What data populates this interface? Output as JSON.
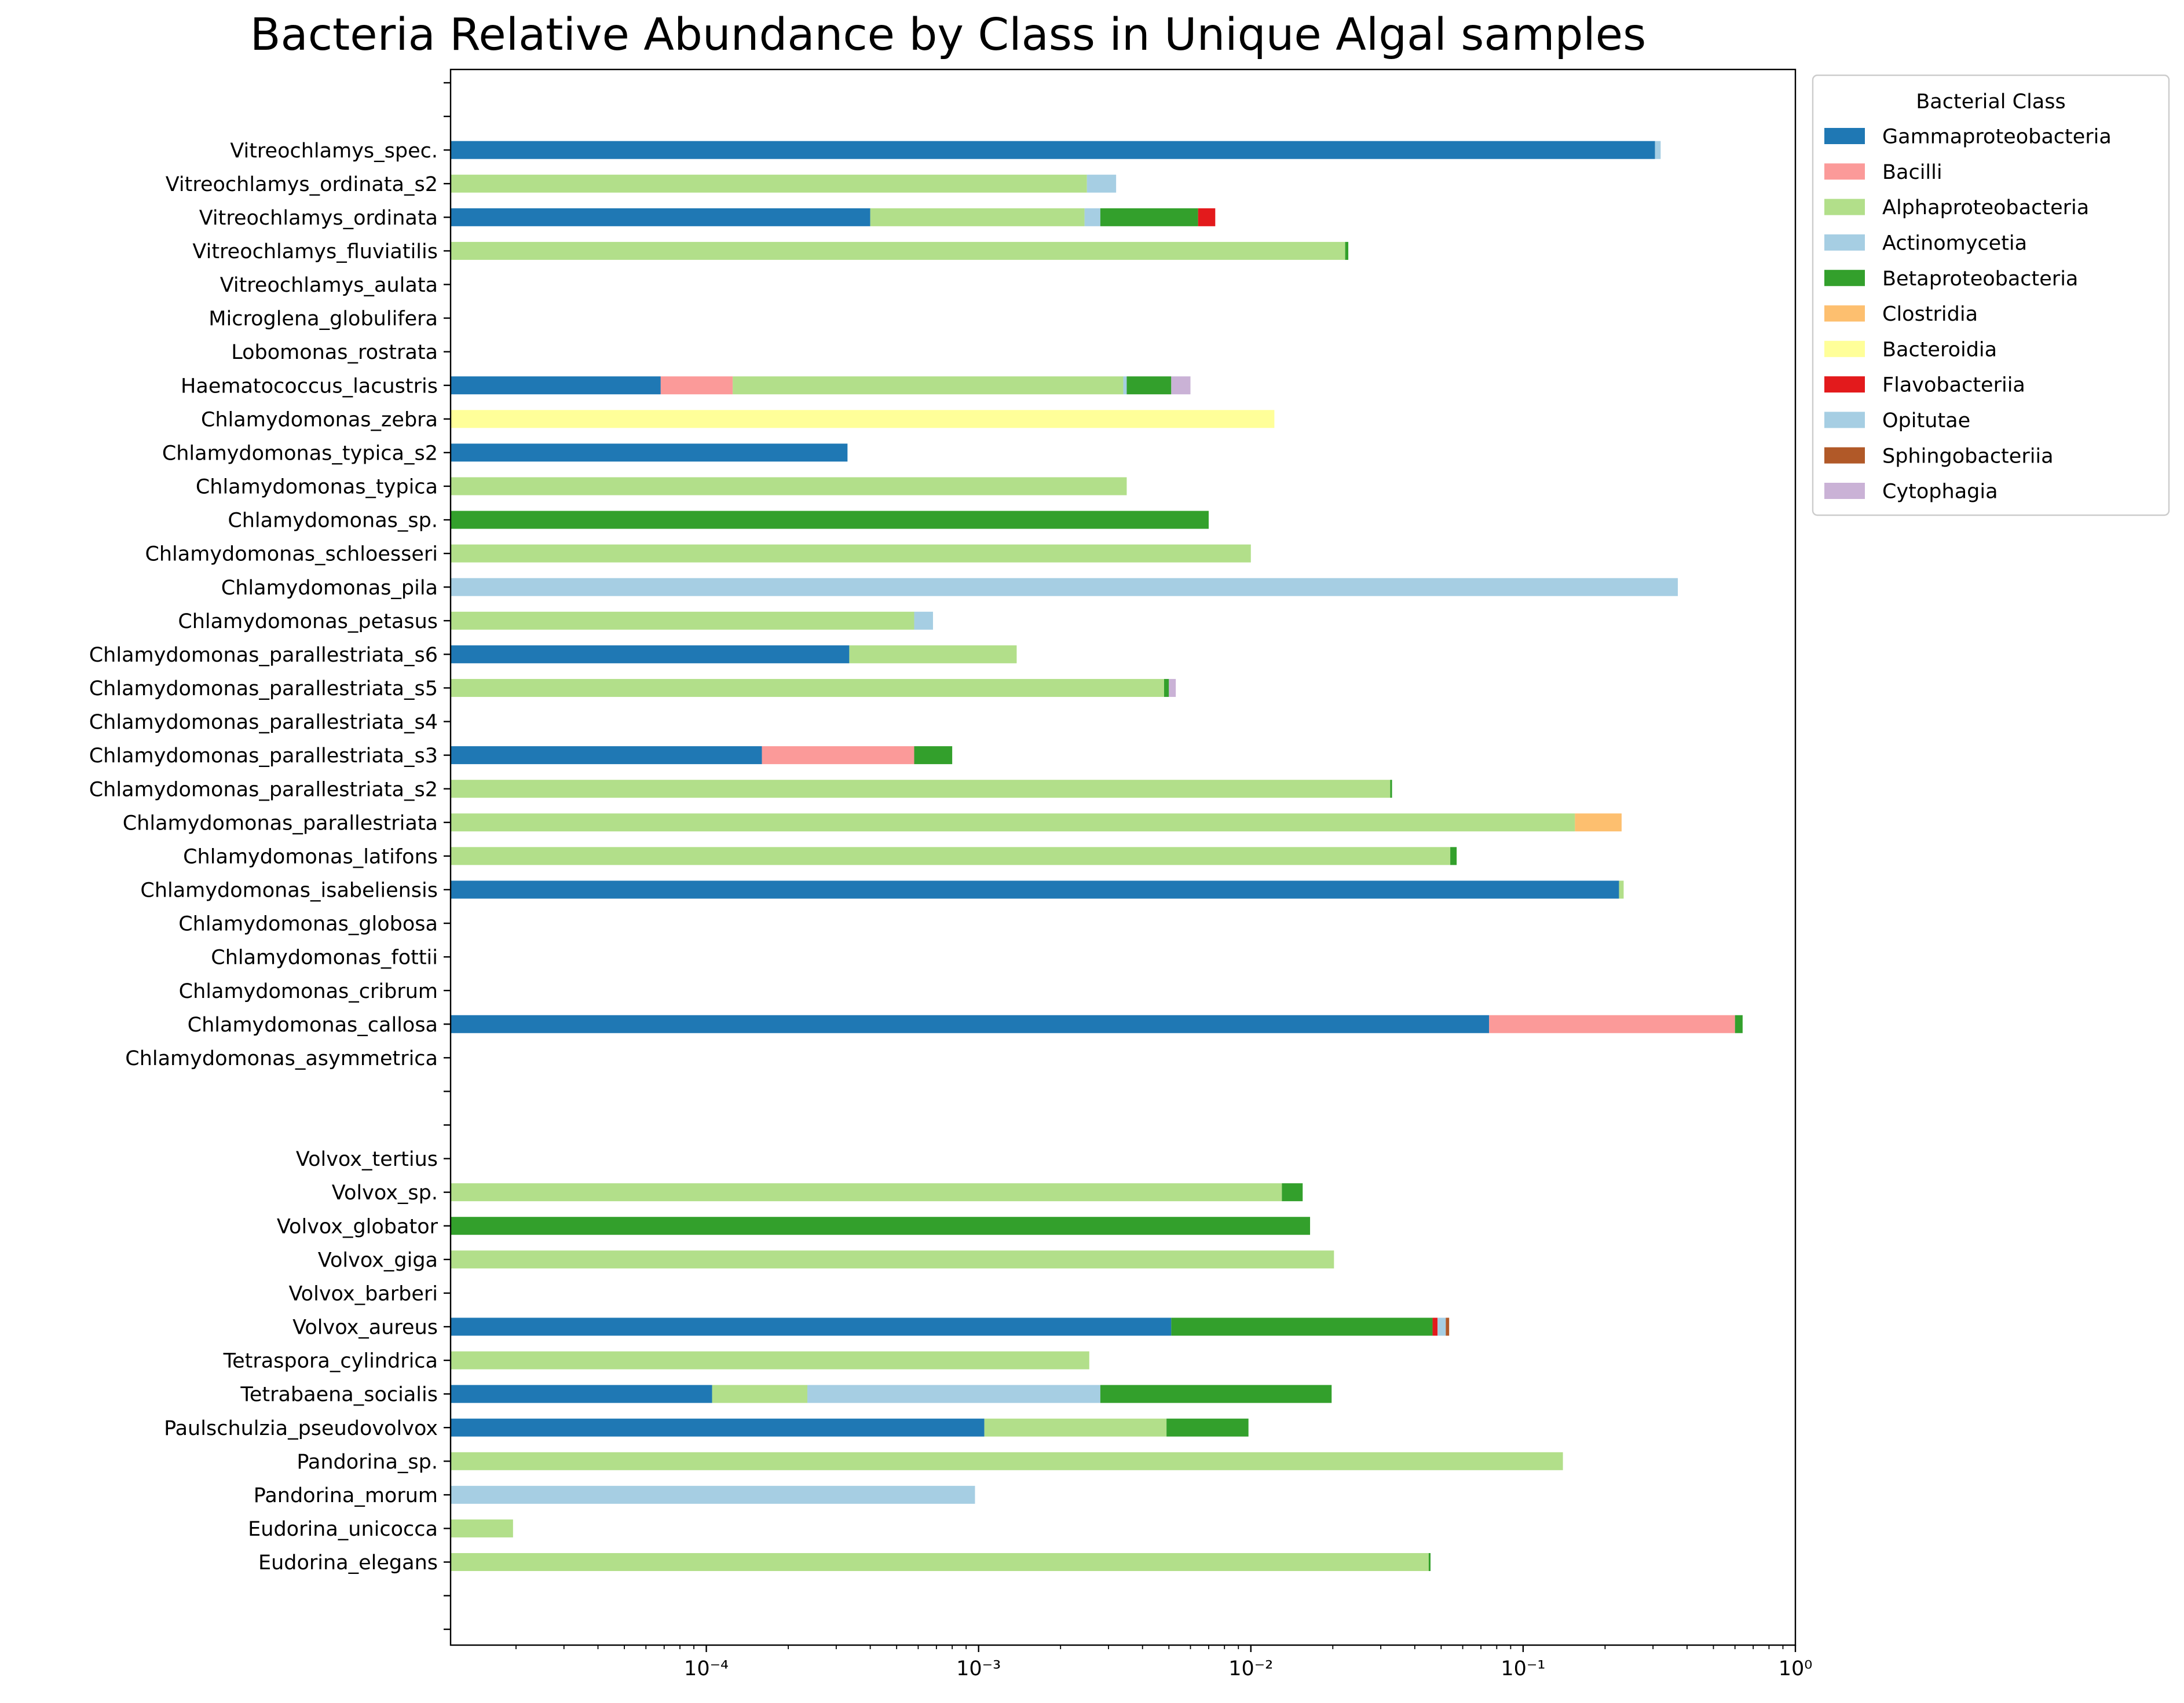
{
  "chart_data": {
    "type": "bar",
    "orientation": "horizontal",
    "stacked": true,
    "title": "Bacteria Relative Abundance by Class in  Unique Algal samples",
    "xlabel": "",
    "ylabel": "",
    "xscale": "log",
    "xlim": [
      1.15e-05,
      1
    ],
    "x_ticks": [
      {
        "value": 0.0001,
        "label": "10⁻⁴"
      },
      {
        "value": 0.001,
        "label": "10⁻³"
      },
      {
        "value": 0.01,
        "label": "10⁻²"
      },
      {
        "value": 0.1,
        "label": "10⁻¹"
      },
      {
        "value": 1,
        "label": "10⁰"
      }
    ],
    "grid": false,
    "legend": {
      "title": "Bacterial Class",
      "placement": "outside-top-right",
      "entries": [
        {
          "name": "Gammaproteobacteria",
          "color": "#1f78b4"
        },
        {
          "name": "Bacilli",
          "color": "#fb9a99"
        },
        {
          "name": "Alphaproteobacteria",
          "color": "#b2df8a"
        },
        {
          "name": "Actinomycetia",
          "color": "#a6cee3"
        },
        {
          "name": "Betaproteobacteria",
          "color": "#33a02c"
        },
        {
          "name": "Clostridia",
          "color": "#fdbf6f"
        },
        {
          "name": "Bacteroidia",
          "color": "#ffff99"
        },
        {
          "name": "Flavobacteriia",
          "color": "#e31a1c"
        },
        {
          "name": "Opitutae",
          "color": "#a6cee3"
        },
        {
          "name": "Sphingobacteriia",
          "color": "#b15928"
        },
        {
          "name": "Cytophagia",
          "color": "#cab2d6"
        }
      ]
    },
    "rows": [
      {
        "label": "",
        "segments": []
      },
      {
        "label": "",
        "segments": []
      },
      {
        "label": "Vitreochlamys_spec.",
        "segments": [
          {
            "class": "Gammaproteobacteria",
            "start": 0,
            "end": 0.305
          },
          {
            "class": "Actinomycetia",
            "start": 0.305,
            "end": 0.32
          }
        ]
      },
      {
        "label": "Vitreochlamys_ordinata_s2",
        "segments": [
          {
            "class": "Alphaproteobacteria",
            "start": 0,
            "end": 0.0025
          },
          {
            "class": "Actinomycetia",
            "start": 0.0025,
            "end": 0.0032
          }
        ]
      },
      {
        "label": "Vitreochlamys_ordinata",
        "segments": [
          {
            "class": "Gammaproteobacteria",
            "start": 0,
            "end": 0.0004
          },
          {
            "class": "Alphaproteobacteria",
            "start": 0.0004,
            "end": 0.00245
          },
          {
            "class": "Actinomycetia",
            "start": 0.00245,
            "end": 0.0028
          },
          {
            "class": "Betaproteobacteria",
            "start": 0.0028,
            "end": 0.0064
          },
          {
            "class": "Flavobacteriia",
            "start": 0.0064,
            "end": 0.0074
          }
        ]
      },
      {
        "label": "Vitreochlamys_fluviatilis",
        "segments": [
          {
            "class": "Alphaproteobacteria",
            "start": 0,
            "end": 0.0222
          },
          {
            "class": "Betaproteobacteria",
            "start": 0.0222,
            "end": 0.0228
          }
        ]
      },
      {
        "label": "Vitreochlamys_aulata",
        "segments": []
      },
      {
        "label": "Microglena_globulifera",
        "segments": []
      },
      {
        "label": "Lobomonas_rostrata",
        "segments": []
      },
      {
        "label": "Haematococcus_lacustris",
        "segments": [
          {
            "class": "Gammaproteobacteria",
            "start": 0,
            "end": 6.8e-05
          },
          {
            "class": "Bacilli",
            "start": 6.8e-05,
            "end": 0.000125
          },
          {
            "class": "Alphaproteobacteria",
            "start": 0.000125,
            "end": 0.0034
          },
          {
            "class": "Actinomycetia",
            "start": 0.0034,
            "end": 0.0035
          },
          {
            "class": "Betaproteobacteria",
            "start": 0.0035,
            "end": 0.0051
          },
          {
            "class": "Cytophagia",
            "start": 0.0051,
            "end": 0.006
          }
        ]
      },
      {
        "label": "Chlamydomonas_zebra",
        "segments": [
          {
            "class": "Bacteroidia",
            "start": 0,
            "end": 0.0122
          }
        ]
      },
      {
        "label": "Chlamydomonas_typica_s2",
        "segments": [
          {
            "class": "Gammaproteobacteria",
            "start": 0,
            "end": 0.00033
          }
        ]
      },
      {
        "label": "Chlamydomonas_typica",
        "segments": [
          {
            "class": "Alphaproteobacteria",
            "start": 0,
            "end": 0.0035
          }
        ]
      },
      {
        "label": "Chlamydomonas_sp.",
        "segments": [
          {
            "class": "Betaproteobacteria",
            "start": 0,
            "end": 0.007
          }
        ]
      },
      {
        "label": "Chlamydomonas_schloesseri",
        "segments": [
          {
            "class": "Alphaproteobacteria",
            "start": 0,
            "end": 0.01
          }
        ]
      },
      {
        "label": "Chlamydomonas_pila",
        "segments": [
          {
            "class": "Actinomycetia",
            "start": 0,
            "end": 0.37
          }
        ]
      },
      {
        "label": "Chlamydomonas_petasus",
        "segments": [
          {
            "class": "Alphaproteobacteria",
            "start": 0,
            "end": 0.00058
          },
          {
            "class": "Actinomycetia",
            "start": 0.00058,
            "end": 0.00068
          }
        ]
      },
      {
        "label": "Chlamydomonas_parallestriata_s6",
        "segments": [
          {
            "class": "Gammaproteobacteria",
            "start": 0,
            "end": 0.000335
          },
          {
            "class": "Alphaproteobacteria",
            "start": 0.000335,
            "end": 0.00138
          }
        ]
      },
      {
        "label": "Chlamydomonas_parallestriata_s5",
        "segments": [
          {
            "class": "Alphaproteobacteria",
            "start": 0,
            "end": 0.0048
          },
          {
            "class": "Betaproteobacteria",
            "start": 0.0048,
            "end": 0.005
          },
          {
            "class": "Cytophagia",
            "start": 0.005,
            "end": 0.0053
          }
        ]
      },
      {
        "label": "Chlamydomonas_parallestriata_s4",
        "segments": []
      },
      {
        "label": "Chlamydomonas_parallestriata_s3",
        "segments": [
          {
            "class": "Gammaproteobacteria",
            "start": 0,
            "end": 0.00016
          },
          {
            "class": "Bacilli",
            "start": 0.00016,
            "end": 0.00058
          },
          {
            "class": "Betaproteobacteria",
            "start": 0.00058,
            "end": 0.0008
          }
        ]
      },
      {
        "label": "Chlamydomonas_parallestriata_s2",
        "segments": [
          {
            "class": "Alphaproteobacteria",
            "start": 0,
            "end": 0.0325
          },
          {
            "class": "Betaproteobacteria",
            "start": 0.0325,
            "end": 0.033
          }
        ]
      },
      {
        "label": "Chlamydomonas_parallestriata",
        "segments": [
          {
            "class": "Alphaproteobacteria",
            "start": 0,
            "end": 0.155
          },
          {
            "class": "Clostridia",
            "start": 0.155,
            "end": 0.23
          }
        ]
      },
      {
        "label": "Chlamydomonas_latifons",
        "segments": [
          {
            "class": "Alphaproteobacteria",
            "start": 0,
            "end": 0.054
          },
          {
            "class": "Betaproteobacteria",
            "start": 0.054,
            "end": 0.057
          }
        ]
      },
      {
        "label": "Chlamydomonas_isabeliensis",
        "segments": [
          {
            "class": "Gammaproteobacteria",
            "start": 0,
            "end": 0.225
          },
          {
            "class": "Alphaproteobacteria",
            "start": 0.225,
            "end": 0.234
          }
        ]
      },
      {
        "label": "Chlamydomonas_globosa",
        "segments": []
      },
      {
        "label": "Chlamydomonas_fottii",
        "segments": []
      },
      {
        "label": "Chlamydomonas_cribrum",
        "segments": []
      },
      {
        "label": "Chlamydomonas_callosa",
        "segments": [
          {
            "class": "Gammaproteobacteria",
            "start": 0,
            "end": 0.075
          },
          {
            "class": "Bacilli",
            "start": 0.075,
            "end": 0.6
          },
          {
            "class": "Betaproteobacteria",
            "start": 0.6,
            "end": 0.64
          }
        ]
      },
      {
        "label": "Chlamydomonas_asymmetrica",
        "segments": []
      },
      {
        "label": "",
        "segments": []
      },
      {
        "label": "",
        "segments": []
      },
      {
        "label": "Volvox_tertius",
        "segments": []
      },
      {
        "label": "Volvox_sp.",
        "segments": [
          {
            "class": "Alphaproteobacteria",
            "start": 0,
            "end": 0.013
          },
          {
            "class": "Betaproteobacteria",
            "start": 0.013,
            "end": 0.0155
          }
        ]
      },
      {
        "label": "Volvox_globator",
        "segments": [
          {
            "class": "Betaproteobacteria",
            "start": 0,
            "end": 0.0165
          }
        ]
      },
      {
        "label": "Volvox_giga",
        "segments": [
          {
            "class": "Alphaproteobacteria",
            "start": 0,
            "end": 0.0202
          }
        ]
      },
      {
        "label": "Volvox_barberi",
        "segments": []
      },
      {
        "label": "Volvox_aureus",
        "segments": [
          {
            "class": "Gammaproteobacteria",
            "start": 0,
            "end": 0.0051
          },
          {
            "class": "Betaproteobacteria",
            "start": 0.0051,
            "end": 0.0465
          },
          {
            "class": "Flavobacteriia",
            "start": 0.0465,
            "end": 0.0485
          },
          {
            "class": "Actinomycetia",
            "start": 0.0485,
            "end": 0.052
          },
          {
            "class": "Sphingobacteriia",
            "start": 0.052,
            "end": 0.0535
          }
        ]
      },
      {
        "label": "Tetraspora_cylindrica",
        "segments": [
          {
            "class": "Alphaproteobacteria",
            "start": 0,
            "end": 0.00255
          }
        ]
      },
      {
        "label": "Tetrabaena_socialis",
        "segments": [
          {
            "class": "Gammaproteobacteria",
            "start": 0,
            "end": 0.000105
          },
          {
            "class": "Alphaproteobacteria",
            "start": 0.000105,
            "end": 0.000235
          },
          {
            "class": "Actinomycetia",
            "start": 0.000235,
            "end": 0.0028
          },
          {
            "class": "Betaproteobacteria",
            "start": 0.0028,
            "end": 0.0198
          }
        ]
      },
      {
        "label": "Paulschulzia_pseudovolvox",
        "segments": [
          {
            "class": "Gammaproteobacteria",
            "start": 0,
            "end": 0.00105
          },
          {
            "class": "Alphaproteobacteria",
            "start": 0.00105,
            "end": 0.0049
          },
          {
            "class": "Betaproteobacteria",
            "start": 0.0049,
            "end": 0.0098
          }
        ]
      },
      {
        "label": "Pandorina_sp.",
        "segments": [
          {
            "class": "Alphaproteobacteria",
            "start": 0,
            "end": 0.14
          }
        ]
      },
      {
        "label": "Pandorina_morum",
        "segments": [
          {
            "class": "Actinomycetia",
            "start": 0,
            "end": 0.00097
          }
        ]
      },
      {
        "label": "Eudorina_unicocca",
        "segments": [
          {
            "class": "Alphaproteobacteria",
            "start": 0,
            "end": 1.95e-05
          }
        ]
      },
      {
        "label": "Eudorina_elegans",
        "segments": [
          {
            "class": "Alphaproteobacteria",
            "start": 0,
            "end": 0.045
          },
          {
            "class": "Betaproteobacteria",
            "start": 0.045,
            "end": 0.0457
          }
        ]
      },
      {
        "label": "",
        "segments": []
      },
      {
        "label": "",
        "segments": []
      }
    ]
  }
}
